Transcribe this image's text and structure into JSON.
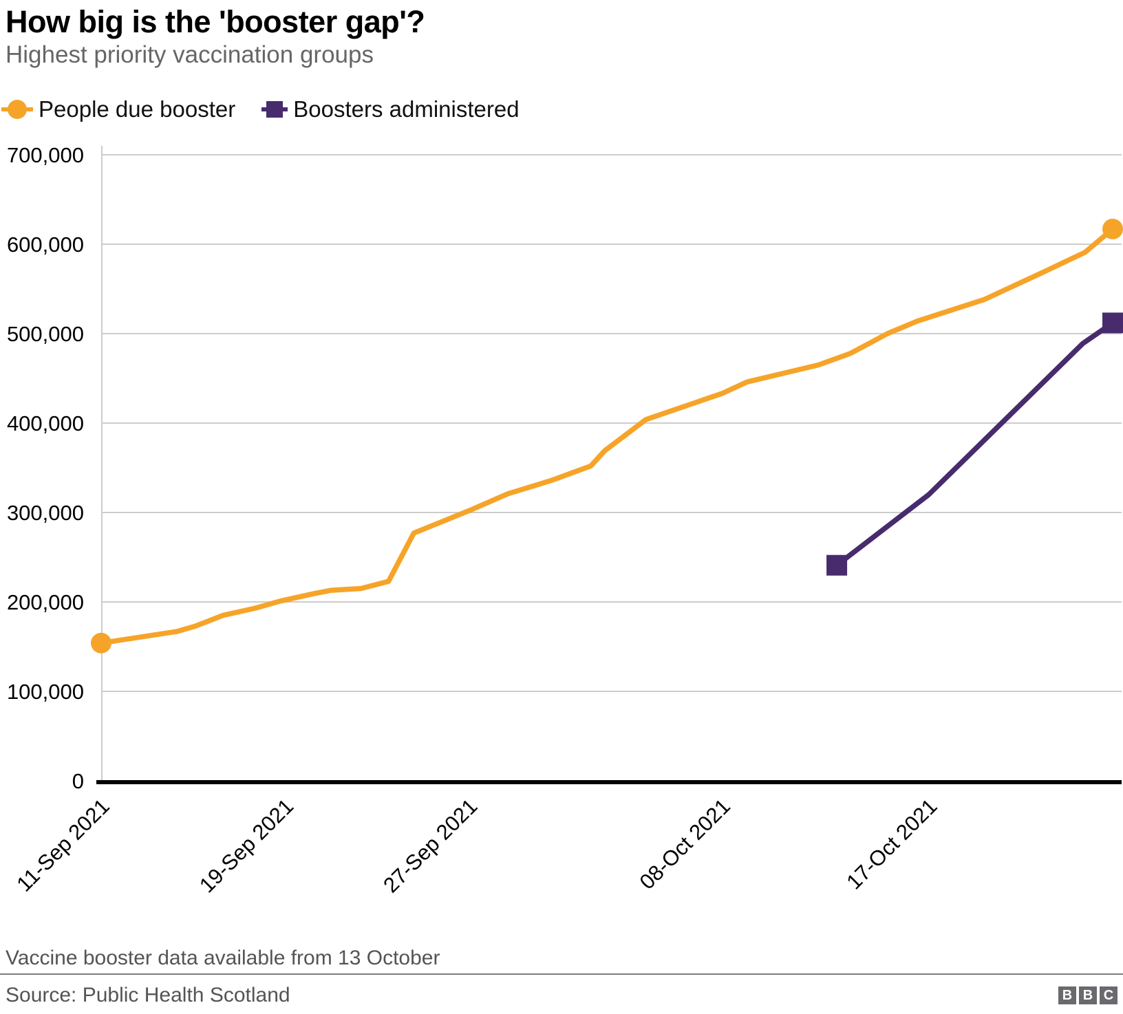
{
  "header": {
    "title": "How big is the 'booster gap'?",
    "subtitle": "Highest priority vaccination groups"
  },
  "legend": [
    {
      "label": "People due booster",
      "marker": "circle",
      "color": "#f6a429"
    },
    {
      "label": "Boosters administered",
      "marker": "square",
      "color": "#472b6d"
    }
  ],
  "footer": {
    "note": "Vaccine booster data available from 13 October",
    "source": "Source: Public Health Scotland",
    "logo_letters": [
      "B",
      "B",
      "C"
    ]
  },
  "chart_data": {
    "type": "line",
    "title": "How big is the 'booster gap'?",
    "subtitle": "Highest priority vaccination groups",
    "xlabel": "",
    "ylabel": "",
    "ylim": [
      0,
      700000
    ],
    "grid": "horizontal",
    "legend_position": "top-left",
    "x_axis": {
      "unit": "date",
      "day0_date": "11-Sep-2021",
      "last_date": "25-Oct-2021",
      "domain_days": [
        0,
        44
      ],
      "ticks": [
        {
          "day": 0,
          "label": "11-Sep 2021"
        },
        {
          "day": 8,
          "label": "19-Sep 2021"
        },
        {
          "day": 16,
          "label": "27-Sep 2021"
        },
        {
          "day": 27,
          "label": "08-Oct 2021"
        },
        {
          "day": 36,
          "label": "17-Oct 2021"
        }
      ]
    },
    "y_axis": {
      "ticks": [
        {
          "value": 0,
          "label": "0"
        },
        {
          "value": 100000,
          "label": "100,000"
        },
        {
          "value": 200000,
          "label": "200,000"
        },
        {
          "value": 300000,
          "label": "300,000"
        },
        {
          "value": 400000,
          "label": "400,000"
        },
        {
          "value": 500000,
          "label": "500,000"
        },
        {
          "value": 600000,
          "label": "600,000"
        },
        {
          "value": 700000,
          "label": "700,000"
        }
      ]
    },
    "series": [
      {
        "name": "People due booster",
        "color": "#f6a429",
        "marker": "circle",
        "points_day_value": [
          [
            0,
            154000
          ],
          [
            3.3,
            167000
          ],
          [
            4.1,
            173000
          ],
          [
            5.3,
            185000
          ],
          [
            6.7,
            193000
          ],
          [
            7.8,
            201000
          ],
          [
            9.2,
            209000
          ],
          [
            10,
            213000
          ],
          [
            11.3,
            215000
          ],
          [
            12.5,
            223000
          ],
          [
            13.6,
            277000
          ],
          [
            16,
            302000
          ],
          [
            17.7,
            321000
          ],
          [
            19.6,
            336000
          ],
          [
            21.3,
            352000
          ],
          [
            21.9,
            369000
          ],
          [
            23.7,
            404000
          ],
          [
            27,
            433000
          ],
          [
            28.1,
            446000
          ],
          [
            31.2,
            465000
          ],
          [
            32.6,
            478000
          ],
          [
            34.2,
            500000
          ],
          [
            35.5,
            514000
          ],
          [
            38.4,
            538000
          ],
          [
            41,
            569000
          ],
          [
            42.8,
            591000
          ],
          [
            44,
            617000
          ]
        ]
      },
      {
        "name": "Boosters administered",
        "color": "#472b6d",
        "marker": "square",
        "points_day_value": [
          [
            32,
            241000
          ],
          [
            36,
            320000
          ],
          [
            42.7,
            489000
          ],
          [
            44,
            512000
          ]
        ]
      }
    ],
    "annotations": {
      "note": "Vaccine booster data available from 13 October"
    }
  }
}
